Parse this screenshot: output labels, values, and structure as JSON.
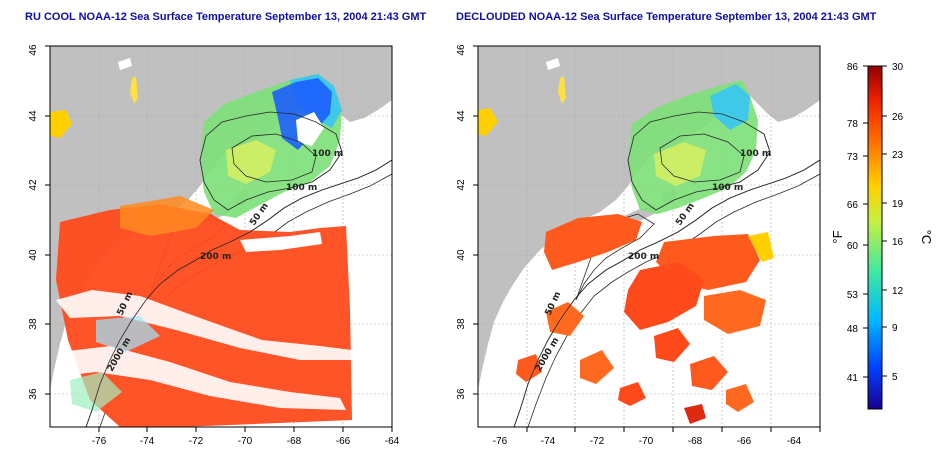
{
  "panels": [
    {
      "id": "left",
      "title": "RU COOL NOAA-12 Sea Surface Temperature September 13, 2004 21:43 GMT",
      "depth_labels": [
        "100 m",
        "100 m",
        "50 m",
        "200 m",
        "50 m",
        "2000 m"
      ]
    },
    {
      "id": "right",
      "title": "DECLOUDED NOAA-12 Sea Surface Temperature September 13, 2004 21:43 GMT",
      "depth_labels": [
        "100 m",
        "100 m",
        "50 m",
        "200 m",
        "50 m",
        "2000 m"
      ]
    }
  ],
  "axes": {
    "lon_ticks": [
      "-76",
      "-74",
      "-72",
      "-70",
      "-68",
      "-66",
      "-64"
    ],
    "lat_ticks": [
      "36",
      "38",
      "40",
      "42",
      "44",
      "46"
    ]
  },
  "colorbar": {
    "fahrenheit_ticks": [
      "86",
      "78",
      "73",
      "66",
      "60",
      "53",
      "48",
      "41"
    ],
    "celsius_ticks": [
      "30",
      "26",
      "23",
      "19",
      "16",
      "12",
      "9",
      "5"
    ],
    "fahrenheit_unit": "°F",
    "celsius_unit": "°C"
  },
  "colors": {
    "title_blue": "#1010a0",
    "land": "#c0c0c0",
    "sst_warm": "#ff4a1c",
    "sst_cool": "#7fe07a",
    "sst_cold": "#1050ff"
  }
}
